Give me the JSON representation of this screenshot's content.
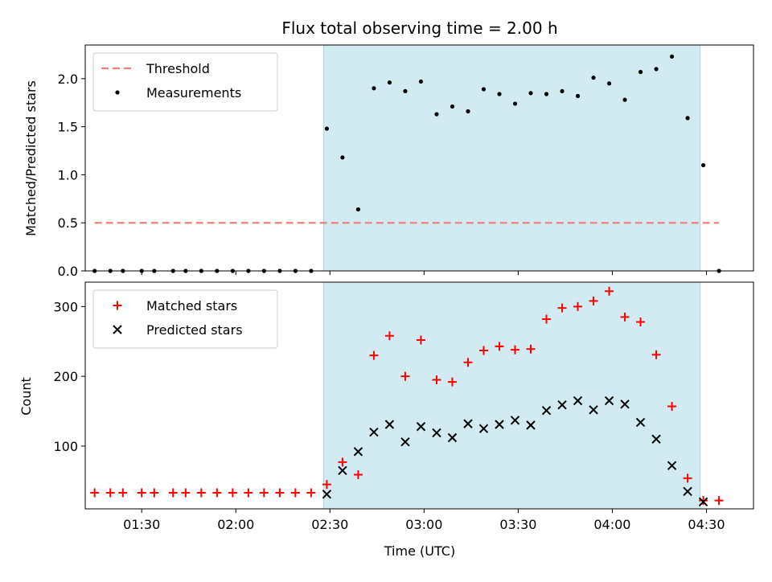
{
  "chart_data": {
    "title": "Flux total observing time = 2.00 h",
    "xlabel": "Time (UTC)",
    "x_ticks": [
      "01:30",
      "02:00",
      "02:30",
      "03:00",
      "03:30",
      "04:00",
      "04:30"
    ],
    "x_tick_minutes": [
      90,
      120,
      150,
      180,
      210,
      240,
      270
    ],
    "x_range_minutes": [
      72,
      285
    ],
    "shaded_region_minutes": [
      148,
      268
    ],
    "shaded_color": "#add8e6",
    "time_minutes": [
      75,
      80,
      84,
      90,
      94,
      100,
      104,
      109,
      114,
      119,
      124,
      129,
      134,
      139,
      144,
      149,
      154,
      159,
      164,
      169,
      174,
      179,
      184,
      189,
      194,
      199,
      204,
      209,
      214,
      219,
      224,
      229,
      234,
      239,
      244,
      249,
      254,
      259,
      264,
      269,
      274
    ],
    "panels": [
      {
        "type": "scatter",
        "ylabel": "Matched/Predicted stars",
        "ylim": [
          0,
          2.35
        ],
        "y_ticks": [
          "0.0",
          "0.5",
          "1.0",
          "1.5",
          "2.0"
        ],
        "y_tick_values": [
          0,
          0.5,
          1.0,
          1.5,
          2.0
        ],
        "threshold": {
          "name": "Threshold",
          "value": 0.5,
          "x_range_minutes": [
            75,
            274
          ],
          "color": "#f08080"
        },
        "series": [
          {
            "name": "Measurements",
            "color": "#000000",
            "values": [
              0,
              0,
              0,
              0,
              0,
              0,
              0,
              0,
              0,
              0,
              0,
              0,
              0,
              0,
              0,
              1.48,
              1.18,
              0.64,
              1.9,
              1.96,
              1.87,
              1.97,
              1.63,
              1.71,
              1.66,
              1.89,
              1.84,
              1.74,
              1.85,
              1.84,
              1.87,
              1.82,
              2.01,
              1.95,
              1.78,
              2.07,
              2.1,
              2.23,
              1.59,
              1.1,
              0
            ]
          }
        ],
        "legend_position": "upper-left"
      },
      {
        "type": "scatter",
        "ylabel": "Count",
        "ylim": [
          10,
          335
        ],
        "y_ticks": [
          "100",
          "200",
          "300"
        ],
        "y_tick_values": [
          100,
          200,
          300
        ],
        "series": [
          {
            "name": "Matched stars",
            "marker": "plus",
            "color": "#ff0000",
            "values": [
              33,
              33,
              33,
              33,
              33,
              33,
              33,
              33,
              33,
              33,
              33,
              33,
              33,
              33,
              33,
              45,
              77,
              59,
              230,
              258,
              200,
              252,
              195,
              192,
              220,
              237,
              243,
              238,
              239,
              282,
              298,
              300,
              308,
              322,
              285,
              278,
              231,
              157,
              54,
              22,
              22
            ]
          },
          {
            "name": "Predicted stars",
            "marker": "x",
            "color": "#000000",
            "values": [
              null,
              null,
              null,
              null,
              null,
              null,
              null,
              null,
              null,
              null,
              null,
              null,
              null,
              null,
              null,
              31,
              65,
              92,
              120,
              131,
              106,
              128,
              119,
              112,
              132,
              125,
              131,
              137,
              130,
              151,
              159,
              165,
              152,
              165,
              160,
              134,
              110,
              72,
              35,
              20,
              null
            ]
          }
        ],
        "legend_position": "upper-left"
      }
    ]
  }
}
